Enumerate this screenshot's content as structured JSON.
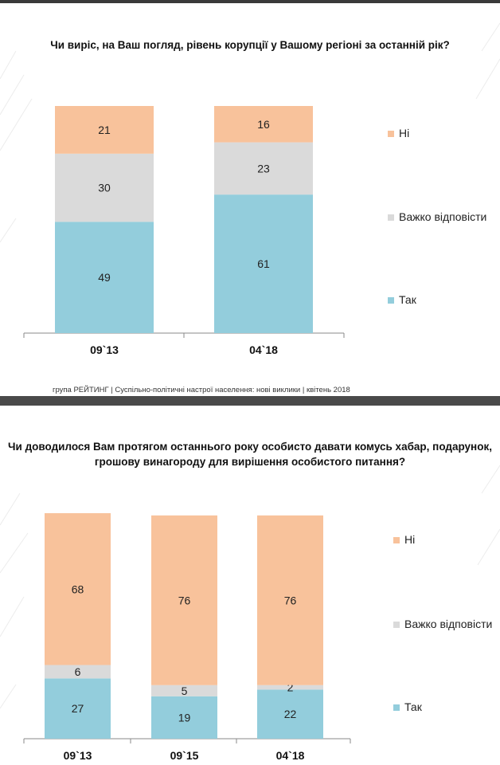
{
  "colors": {
    "ni": "#f8c29b",
    "vazhko": "#dadada",
    "tak": "#93cddc",
    "axis": "#8a8a8a"
  },
  "source_line": "група РЕЙТИНГ  |  Суспільно-політичні настрої населення: нові виклики  |  квітень 2018",
  "chart_data": [
    {
      "type": "bar",
      "stacked": true,
      "title": "Чи виріс, на Ваш погляд, рівень корупції у Вашому регіоні за останній рік?",
      "categories": [
        "09`13",
        "04`18"
      ],
      "series": [
        {
          "name": "Так",
          "color": "#93cddc",
          "values": [
            49,
            61
          ]
        },
        {
          "name": "Важко відповісти",
          "color": "#dadada",
          "values": [
            30,
            23
          ]
        },
        {
          "name": "Ні",
          "color": "#f8c29b",
          "values": [
            21,
            16
          ]
        }
      ],
      "legend_order": [
        "Ні",
        "Важко відповісти",
        "Так"
      ],
      "ylim": [
        0,
        100
      ],
      "legend": "right",
      "grid": false
    },
    {
      "type": "bar",
      "stacked": true,
      "title": "Чи доводилося Вам протягом останнього року особисто давати комусь хабар, подарунок, грошову винагороду для вирішення особистого питання?",
      "title_lines": [
        "Чи доводилося Вам протягом останнього року особисто давати комусь хабар, подарунок,",
        "грошову винагороду для вирішення особистого питання?"
      ],
      "categories": [
        "09`13",
        "09`15",
        "04`18"
      ],
      "series": [
        {
          "name": "Так",
          "color": "#93cddc",
          "values": [
            27,
            19,
            22
          ]
        },
        {
          "name": "Важко відповісти",
          "color": "#dadada",
          "values": [
            6,
            5,
            2
          ]
        },
        {
          "name": "Ні",
          "color": "#f8c29b",
          "values": [
            68,
            76,
            76
          ]
        }
      ],
      "legend_order": [
        "Ні",
        "Важко відповісти",
        "Так"
      ],
      "ylim": [
        0,
        101
      ],
      "legend": "right",
      "grid": false
    }
  ]
}
